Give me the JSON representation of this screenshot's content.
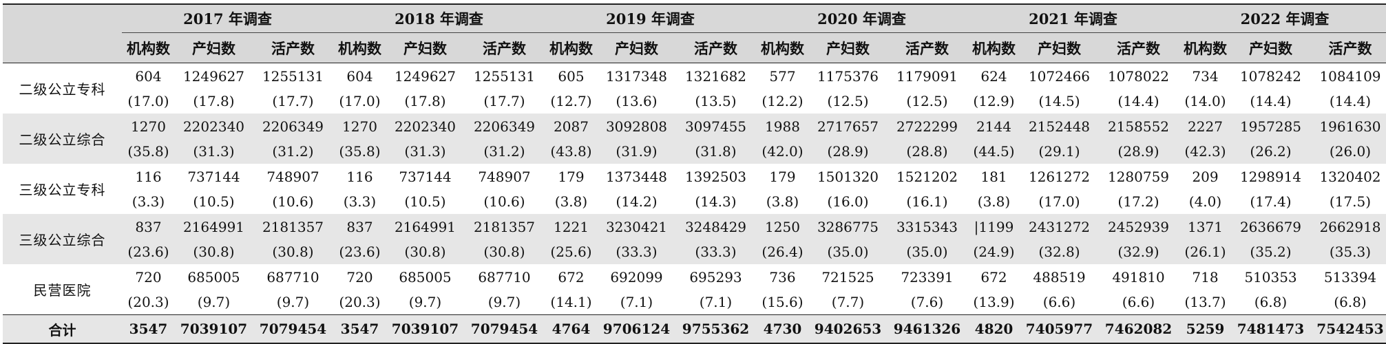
{
  "years": [
    "2017 年调查",
    "2018 年调查",
    "2019 年调查",
    "2020 年调查",
    "2021 年调查",
    "2022 年调查"
  ],
  "subheaders": [
    "机构数",
    "产妇数",
    "活产数"
  ],
  "rows": [
    {
      "category": "二级公立专科",
      "values": [
        "604",
        "1249627",
        "1255131",
        "604",
        "1249627",
        "1255131",
        "605",
        "1317348",
        "1321682",
        "577",
        "1175376",
        "1179091",
        "624",
        "1072466",
        "1078022",
        "734",
        "1078242",
        "1084109"
      ],
      "pct": [
        "(17.0)",
        "(17.8)",
        "(17.7)",
        "(17.0)",
        "(17.8)",
        "(17.7)",
        "(12.7)",
        "(13.6)",
        "(13.5)",
        "(12.2)",
        "(12.5)",
        "(12.5)",
        "(12.9)",
        "(14.5)",
        "(14.4)",
        "(14.0)",
        "(14.4)",
        "(14.4)"
      ]
    },
    {
      "category": "二级公立综合",
      "values": [
        "1270",
        "2202340",
        "2206349",
        "1270",
        "2202340",
        "2206349",
        "2087",
        "3092808",
        "3097455",
        "1988",
        "2717657",
        "2722299",
        "2144",
        "2152448",
        "2158552",
        "2227",
        "1957285",
        "1961630"
      ],
      "pct": [
        "(35.8)",
        "(31.3)",
        "(31.2)",
        "(35.8)",
        "(31.3)",
        "(31.2)",
        "(43.8)",
        "(31.9)",
        "(31.8)",
        "(42.0)",
        "(28.9)",
        "(28.8)",
        "(44.5)",
        "(29.1)",
        "(28.9)",
        "(42.3)",
        "(26.2)",
        "(26.0)"
      ]
    },
    {
      "category": "三级公立专科",
      "values": [
        "116",
        "737144",
        "748907",
        "116",
        "737144",
        "748907",
        "179",
        "1373448",
        "1392503",
        "179",
        "1501320",
        "1521202",
        "181",
        "1261272",
        "1280759",
        "209",
        "1298914",
        "1320402"
      ],
      "pct": [
        "(3.3)",
        "(10.5)",
        "(10.6)",
        "(3.3)",
        "(10.5)",
        "(10.6)",
        "(3.8)",
        "(14.2)",
        "(14.3)",
        "(3.8)",
        "(16.0)",
        "(16.1)",
        "(3.8)",
        "(17.0)",
        "(17.2)",
        "(4.0)",
        "(17.4)",
        "(17.5)"
      ]
    },
    {
      "category": "三级公立综合",
      "values": [
        "837",
        "2164991",
        "2181357",
        "837",
        "2164991",
        "2181357",
        "1221",
        "3230421",
        "3248429",
        "1250",
        "3286775",
        "3315343",
        "|1199",
        "2431272",
        "2452939",
        "1371",
        "2636679",
        "2662918"
      ],
      "pct": [
        "(23.6)",
        "(30.8)",
        "(30.8)",
        "(23.6)",
        "(30.8)",
        "(30.8)",
        "(25.6)",
        "(33.3)",
        "(33.3)",
        "(26.4)",
        "(35.0)",
        "(35.0)",
        "(24.9)",
        "(32.8)",
        "(32.9)",
        "(26.1)",
        "(35.2)",
        "(35.3)"
      ]
    },
    {
      "category": "民营医院",
      "values": [
        "720",
        "685005",
        "687710",
        "720",
        "685005",
        "687710",
        "672",
        "692099",
        "695293",
        "736",
        "721525",
        "723391",
        "672",
        "488519",
        "491810",
        "718",
        "510353",
        "513394"
      ],
      "pct": [
        "(20.3)",
        "(9.7)",
        "(9.7)",
        "(20.3)",
        "(9.7)",
        "(9.7)",
        "(14.1)",
        "(7.1)",
        "(7.1)",
        "(15.6)",
        "(7.7)",
        "(7.6)",
        "(13.9)",
        "(6.6)",
        "(6.6)",
        "(13.7)",
        "(6.8)",
        "(6.8)"
      ]
    }
  ],
  "total": {
    "label": "合计",
    "values": [
      "3547",
      "7039107",
      "7079454",
      "3547",
      "7039107",
      "7079454",
      "4764",
      "9706124",
      "9755362",
      "4730",
      "9402653",
      "9461326",
      "4820",
      "7405977",
      "7462082",
      "5259",
      "7481473",
      "7542453"
    ]
  }
}
